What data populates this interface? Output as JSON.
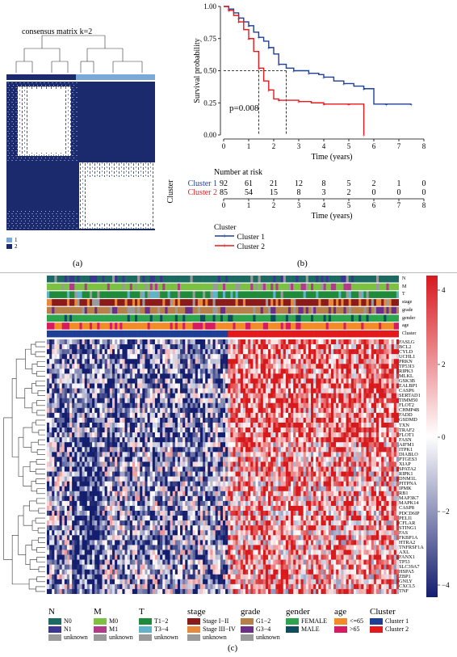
{
  "panel_a": {
    "title": "consensus matrix k=2",
    "legend": [
      "1",
      "2"
    ],
    "legend_colors": [
      "#7aa9d8",
      "#1a2a6c"
    ],
    "caption": "(a)"
  },
  "panel_b": {
    "caption": "(b)",
    "pvalue": "p=0.008",
    "risk_title": "Number at risk",
    "strata_axis_label": "Cluster",
    "legend_title": "Cluster",
    "chart_data": {
      "type": "line",
      "xlabel": "Time (years)",
      "ylabel": "Survival probability",
      "xlim": [
        0,
        8
      ],
      "ylim": [
        0,
        1
      ],
      "x_ticks": [
        "0",
        "1",
        "2",
        "3",
        "4",
        "5",
        "6",
        "7",
        "8"
      ],
      "y_ticks": [
        "0.00",
        "0.25",
        "0.50",
        "0.75",
        "1.00"
      ],
      "median_line_y": 0.5,
      "series": [
        {
          "name": "Cluster 1",
          "color": "#1f3f96",
          "x": [
            0,
            0.2,
            0.4,
            0.6,
            0.8,
            1.0,
            1.2,
            1.4,
            1.6,
            1.8,
            2.0,
            2.2,
            2.5,
            2.8,
            3.0,
            3.4,
            3.8,
            4.0,
            4.4,
            4.8,
            5.2,
            5.6,
            6.0,
            6.5,
            7.0,
            7.5
          ],
          "y": [
            1.0,
            0.98,
            0.95,
            0.91,
            0.88,
            0.85,
            0.8,
            0.76,
            0.73,
            0.68,
            0.63,
            0.55,
            0.52,
            0.5,
            0.5,
            0.48,
            0.47,
            0.45,
            0.42,
            0.4,
            0.38,
            0.36,
            0.24,
            0.24,
            0.24,
            0.24
          ]
        },
        {
          "name": "Cluster 2",
          "color": "#e4191c",
          "x": [
            0,
            0.2,
            0.4,
            0.6,
            0.8,
            1.0,
            1.2,
            1.4,
            1.6,
            1.8,
            2.0,
            2.2,
            2.5,
            3.0,
            3.5,
            4.0,
            4.5,
            5.0,
            5.5,
            5.6
          ],
          "y": [
            1.0,
            0.97,
            0.93,
            0.88,
            0.82,
            0.75,
            0.65,
            0.52,
            0.42,
            0.35,
            0.28,
            0.27,
            0.27,
            0.26,
            0.25,
            0.24,
            0.24,
            0.24,
            0.24,
            0.0
          ]
        }
      ]
    },
    "risk_table": {
      "x": [
        "0",
        "1",
        "2",
        "3",
        "4",
        "5",
        "6",
        "7",
        "8"
      ],
      "rows": [
        {
          "name": "Cluster 1",
          "color": "#1f3f96",
          "values": [
            "92",
            "61",
            "21",
            "12",
            "8",
            "5",
            "2",
            "1",
            "0"
          ]
        },
        {
          "name": "Cluster 2",
          "color": "#e4191c",
          "values": [
            "85",
            "54",
            "15",
            "8",
            "3",
            "2",
            "0",
            "0",
            "0"
          ]
        }
      ]
    }
  },
  "panel_c": {
    "caption": "(c)",
    "annotation_rows": [
      "N",
      "M",
      "T",
      "stage",
      "grade",
      "gender",
      "age",
      "Cluster"
    ],
    "genes": [
      "FASLG",
      "BCL2",
      "CYLD",
      "UCHL1",
      "PRKN",
      "TP53I3",
      "RIPK3",
      "MLKL",
      "GSK3B",
      "EALBP1",
      "CASP6",
      "SERTAD1",
      "TIMM50",
      "FLOT2",
      "CHMP4B",
      "FADD",
      "GSDMD",
      "TXN",
      "TRAF2",
      "FLOT1",
      "FASN",
      "AIFM1",
      "ITPK1",
      "DIABLO",
      "PTGES3",
      "XIAP",
      "SPATA2",
      "RIPK1",
      "DNM1L",
      "PITPNA",
      "IPMK",
      "RB1",
      "MAP3K7",
      "MAPK14",
      "CASP8",
      "PDCD6IP",
      "PELI1",
      "CFLAR",
      "STING1",
      "FAS",
      "FKBP1A",
      "HTRA2",
      "TNFRSF1A",
      "AXL",
      "FANX1",
      "TP53",
      "SLC39A7",
      "HSPA5",
      "ZBP1",
      "GNLY",
      "CXCL5",
      "TNF"
    ],
    "colorbar_ticks": [
      "4",
      "2",
      "0",
      "−2",
      "−4"
    ],
    "legend_groups": [
      {
        "title": "N",
        "items": [
          {
            "label": "N0",
            "color": "#1c6b63"
          },
          {
            "label": "N1",
            "color": "#3a3791"
          },
          {
            "label": "unknown",
            "color": "#9a9a9a"
          }
        ]
      },
      {
        "title": "M",
        "items": [
          {
            "label": "M0",
            "color": "#7cc142"
          },
          {
            "label": "M1",
            "color": "#b23a8a"
          },
          {
            "label": "unknown",
            "color": "#9a9a9a"
          }
        ]
      },
      {
        "title": "T",
        "items": [
          {
            "label": "T1−2",
            "color": "#1f8a3a"
          },
          {
            "label": "T3−4",
            "color": "#5fb4c9"
          },
          {
            "label": "unknown",
            "color": "#9a9a9a"
          }
        ]
      },
      {
        "title": "stage",
        "items": [
          {
            "label": "Stage I−II",
            "color": "#8b1a1a"
          },
          {
            "label": "Stage III−IV",
            "color": "#e8883a"
          },
          {
            "label": "unknown",
            "color": "#9a9a9a"
          }
        ]
      },
      {
        "title": "grade",
        "items": [
          {
            "label": "G1−2",
            "color": "#b5804a"
          },
          {
            "label": "G3−4",
            "color": "#6b2f86"
          },
          {
            "label": "unknown",
            "color": "#9a9a9a"
          }
        ]
      },
      {
        "title": "gender",
        "items": [
          {
            "label": "FEMALE",
            "color": "#2ea44f"
          },
          {
            "label": "MALE",
            "color": "#0f4c5c"
          }
        ]
      },
      {
        "title": "age",
        "items": [
          {
            "label": "<=65",
            "color": "#f28c28"
          },
          {
            "label": ">65",
            "color": "#d81b60"
          }
        ]
      },
      {
        "title": "Cluster",
        "items": [
          {
            "label": "Cluster 1",
            "color": "#1f3f96"
          },
          {
            "label": "Cluster 2",
            "color": "#e4191c"
          }
        ]
      }
    ]
  }
}
